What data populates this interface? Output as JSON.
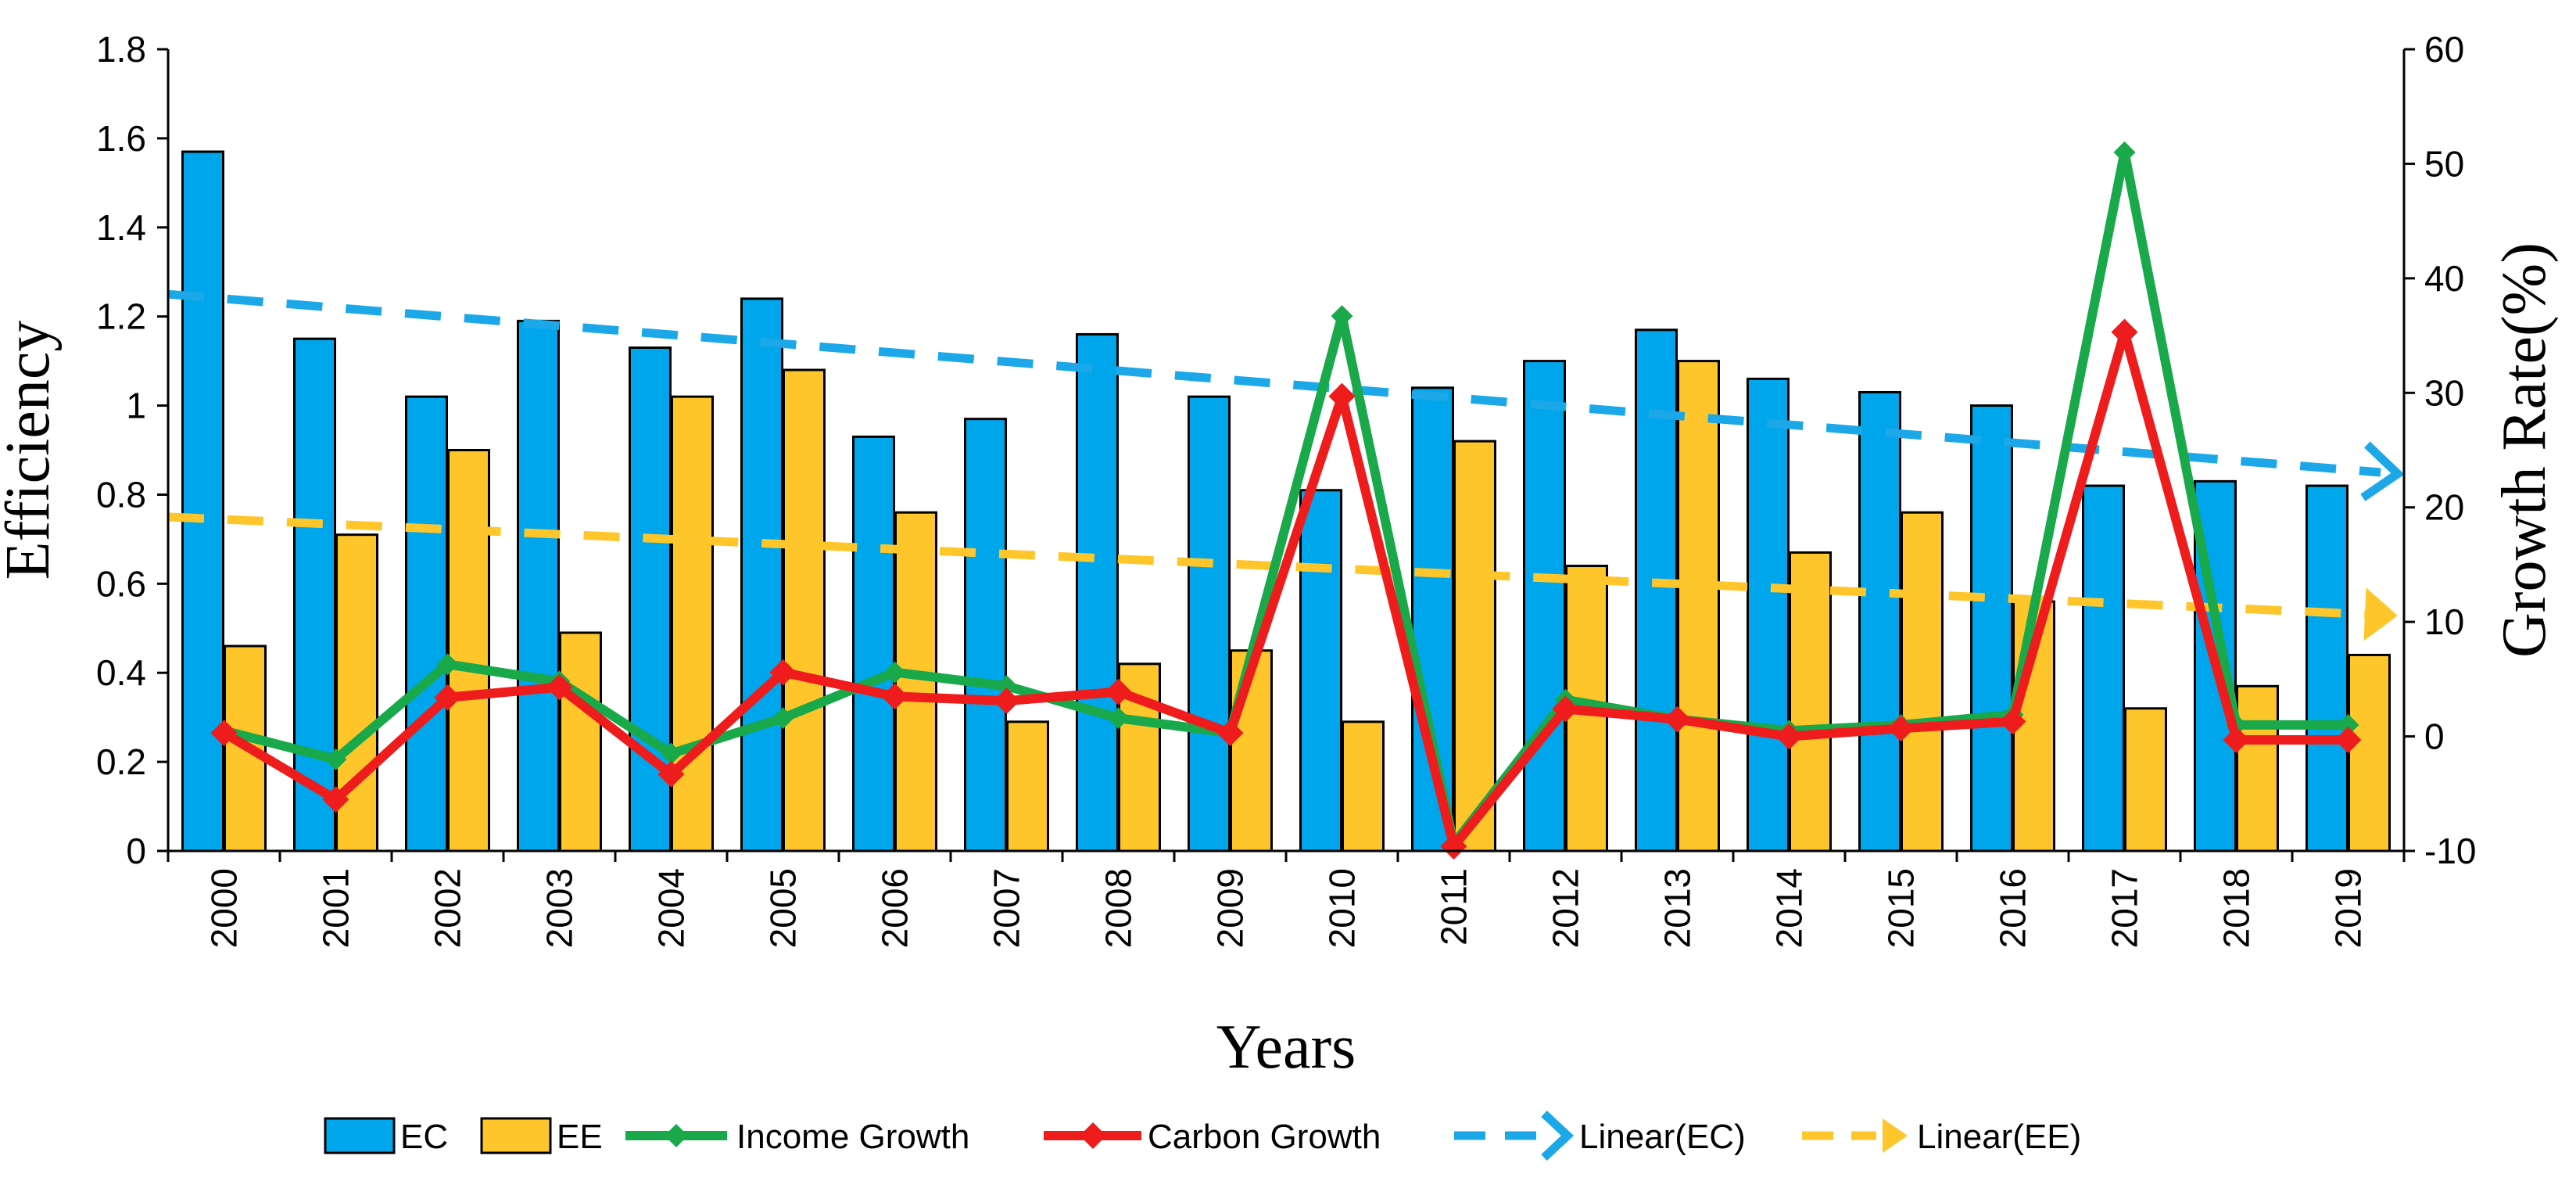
{
  "chart_data": {
    "type": "bar",
    "categories": [
      "2000",
      "2001",
      "2002",
      "2003",
      "2004",
      "2005",
      "2006",
      "2007",
      "2008",
      "2009",
      "2010",
      "2011",
      "2012",
      "2013",
      "2014",
      "2015",
      "2016",
      "2017",
      "2018",
      "2019"
    ],
    "xlabel": "Years",
    "ylabel": "Efficiency",
    "y2label": "Growth Rate(%)",
    "ylim": [
      0,
      1.8
    ],
    "y2lim": [
      -10,
      60
    ],
    "yticks": [
      "0",
      "0.2",
      "0.4",
      "0.6",
      "0.8",
      "1",
      "1.2",
      "1.4",
      "1.6",
      "1.8"
    ],
    "y2ticks": [
      "-10",
      "0",
      "10",
      "20",
      "30",
      "40",
      "50",
      "60"
    ],
    "legend_position": "bottom",
    "grid": false,
    "bar_series": [
      {
        "name": "EC",
        "color": "#00A6EB",
        "values": [
          1.57,
          1.15,
          1.02,
          1.19,
          1.13,
          1.24,
          0.93,
          0.97,
          1.16,
          1.02,
          0.81,
          1.04,
          1.1,
          1.17,
          1.06,
          1.03,
          1.0,
          0.82,
          0.83,
          0.82
        ]
      },
      {
        "name": "EE",
        "color": "#FFC62B",
        "values": [
          0.46,
          0.71,
          0.9,
          0.49,
          1.02,
          1.08,
          0.76,
          0.29,
          0.42,
          0.45,
          0.29,
          0.92,
          0.64,
          1.1,
          0.67,
          0.76,
          0.56,
          0.32,
          0.37,
          0.44
        ]
      }
    ],
    "line_series": [
      {
        "name": "Income Growth",
        "color": "#19A84A",
        "axis": "right",
        "values": [
          0.5,
          -2.0,
          6.3,
          4.8,
          -1.5,
          1.6,
          5.6,
          4.4,
          1.6,
          0.3,
          36.7,
          -9.4,
          3.2,
          1.5,
          0.5,
          1.0,
          1.9,
          51.0,
          1.0,
          1.0
        ]
      },
      {
        "name": "Carbon Growth",
        "color": "#EE1C1C",
        "axis": "right",
        "values": [
          0.3,
          -5.5,
          3.4,
          4.3,
          -3.3,
          5.6,
          3.5,
          3.1,
          3.9,
          0.3,
          29.7,
          -9.6,
          2.4,
          1.5,
          0.0,
          0.7,
          1.3,
          35.3,
          -0.3,
          -0.3
        ]
      }
    ],
    "trend_series": [
      {
        "name": "Linear(EC)",
        "color": "#1CA8E8",
        "axis": "left",
        "start": 1.25,
        "end": 0.85
      },
      {
        "name": "Linear(EE)",
        "color": "#FFC62B",
        "axis": "left",
        "start": 0.75,
        "end": 0.53
      }
    ]
  }
}
